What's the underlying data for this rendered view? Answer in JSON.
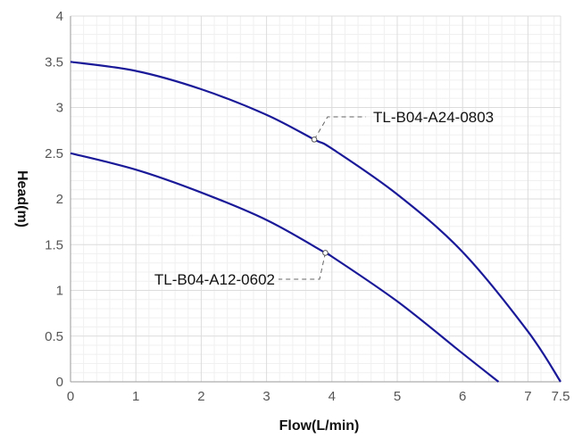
{
  "chart_data": {
    "type": "line",
    "title": "",
    "xlabel": "Flow(L/min)",
    "ylabel": "Head(m)",
    "xlim": [
      0,
      7.5
    ],
    "ylim": [
      0,
      4
    ],
    "x_ticks": [
      "0",
      "1",
      "2",
      "3",
      "4",
      "5",
      "6",
      "7",
      "7.5"
    ],
    "y_ticks": [
      "0",
      "0.5",
      "1",
      "1.5",
      "2",
      "2.5",
      "3",
      "3.5",
      "4"
    ],
    "grid": true,
    "legend": "none",
    "series": [
      {
        "name": "TL-B04-A24-0803",
        "color": "#1a1a99",
        "points": [
          [
            0,
            3.5
          ],
          [
            1,
            3.4
          ],
          [
            2,
            3.2
          ],
          [
            3,
            2.92
          ],
          [
            3.73,
            2.65
          ],
          [
            4,
            2.55
          ],
          [
            5,
            2.05
          ],
          [
            6,
            1.42
          ],
          [
            7,
            0.55
          ],
          [
            7.5,
            0
          ]
        ]
      },
      {
        "name": "TL-B04-A12-0602",
        "color": "#1a1a99",
        "points": [
          [
            0,
            2.5
          ],
          [
            1,
            2.32
          ],
          [
            2,
            2.07
          ],
          [
            3,
            1.77
          ],
          [
            3.9,
            1.41
          ],
          [
            4,
            1.37
          ],
          [
            5,
            0.88
          ],
          [
            6,
            0.31
          ],
          [
            6.55,
            0
          ]
        ]
      }
    ],
    "annotations": [
      {
        "text": "TL-B04-A24-0803",
        "series": 0,
        "at": [
          3.73,
          2.65
        ]
      },
      {
        "text": "TL-B04-A12-0602",
        "series": 1,
        "at": [
          3.9,
          1.41
        ]
      }
    ]
  }
}
